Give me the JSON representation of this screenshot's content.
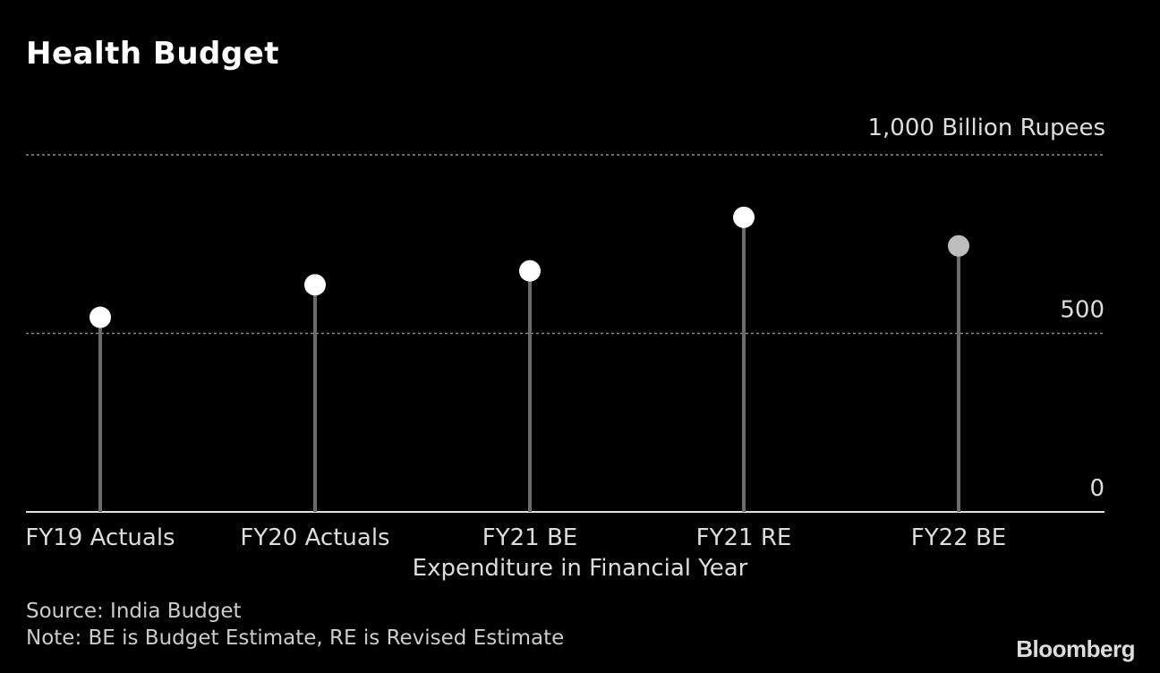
{
  "chart_data": {
    "type": "scatter",
    "style": "lollipop",
    "title": "Health Budget",
    "ylabel": "1,000 Billion Rupees",
    "xlabel": "Expenditure in Financial Year",
    "categories": [
      "FY19 Actuals",
      "FY20 Actuals",
      "FY21 BE",
      "FY21 RE",
      "FY22 BE"
    ],
    "values": [
      545,
      636,
      675,
      825,
      745
    ],
    "highlight": [
      false,
      false,
      false,
      false,
      true
    ],
    "ylim": [
      0,
      1000
    ],
    "yticks": [
      0,
      500,
      1000
    ],
    "ytick_labels": [
      "0",
      "500",
      "1,000"
    ],
    "grid": true
  },
  "footer": {
    "source": "Source: India Budget",
    "note": "Note: BE is Budget Estimate, RE is Revised Estimate",
    "brand": "Bloomberg"
  },
  "colors": {
    "point": "#ffffff",
    "point_highlight": "#bdbdbd",
    "stem": "#6b6b6b",
    "grid": "#8a8a8a"
  }
}
